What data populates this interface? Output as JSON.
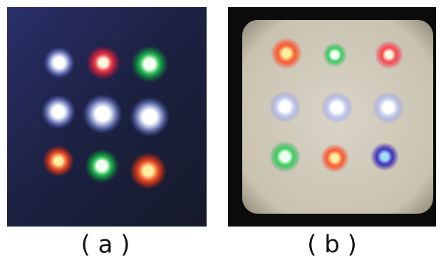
{
  "figure": {
    "panels": [
      {
        "label": "( a )"
      },
      {
        "label": "( b )"
      }
    ]
  }
}
